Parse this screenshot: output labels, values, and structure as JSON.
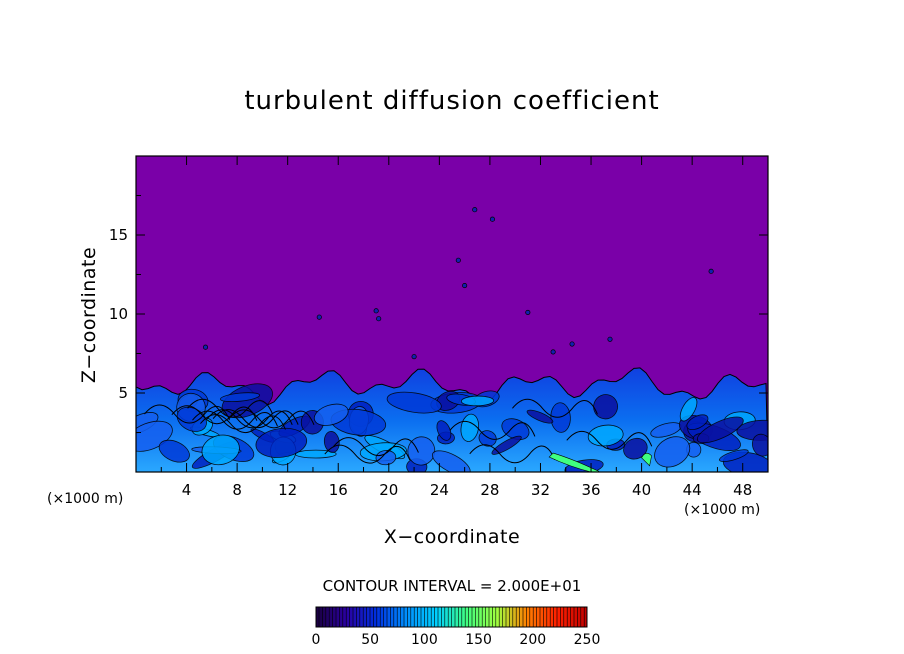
{
  "chart_data": {
    "type": "heatmap",
    "title": "turbulent diffusion coefficient",
    "xlabel": "X−coordinate",
    "ylabel": "Z−coordinate",
    "x_unit_left": "(×1000 m)",
    "x_unit_right": "(×1000 m)",
    "xlim": [
      0,
      50
    ],
    "ylim": [
      0,
      20
    ],
    "x_ticks": [
      "4",
      "8",
      "12",
      "16",
      "20",
      "24",
      "28",
      "32",
      "36",
      "40",
      "44",
      "48"
    ],
    "y_ticks": [
      "5",
      "10",
      "15"
    ],
    "contour_interval_label": "CONTOUR INTERVAL = 2.000E+01",
    "colorbar": {
      "min": 0,
      "max": 250,
      "ticks": [
        "0",
        "50",
        "100",
        "150",
        "200",
        "250"
      ],
      "colors": [
        "#1a0040",
        "#2a00a0",
        "#0030e0",
        "#0090ff",
        "#00d0ff",
        "#40ff80",
        "#a0ff40",
        "#ff8000",
        "#ff2000",
        "#c00000"
      ]
    },
    "background_value_color": "#7a00a8",
    "turbulent_layer_top_km": 5.5,
    "grid": false
  }
}
